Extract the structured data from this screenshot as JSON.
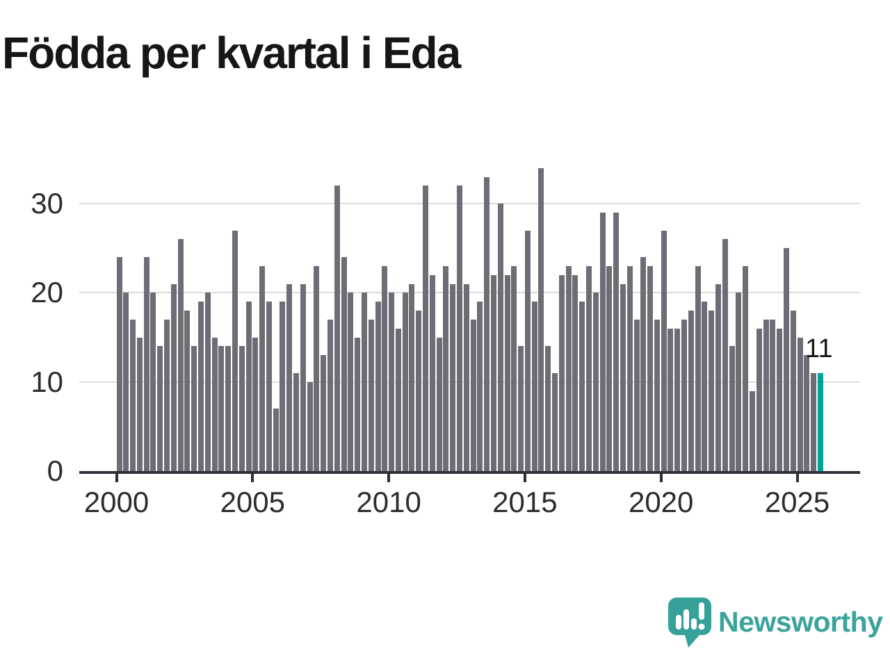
{
  "title": "Födda per kvartal i Eda",
  "logo": {
    "text": "Newsworthy"
  },
  "colors": {
    "bar": "#6d6d76",
    "highlight": "#00a29c",
    "grid": "#dcdcdc",
    "axis": "#2e2e37",
    "title_text": "#161616",
    "tick_label": "#2c2c2c",
    "logo_teal": "#3aa39b"
  },
  "chart_data": {
    "type": "bar",
    "title": "Födda per kvartal i Eda",
    "frequency": "quarterly",
    "start_period": "2000 Q1",
    "end_period": "2025 Q4",
    "values": [
      24,
      20,
      17,
      15,
      24,
      20,
      14,
      17,
      21,
      26,
      18,
      14,
      19,
      20,
      15,
      14,
      14,
      27,
      14,
      19,
      15,
      23,
      19,
      7,
      19,
      21,
      11,
      21,
      10,
      23,
      13,
      17,
      32,
      24,
      20,
      15,
      20,
      17,
      19,
      23,
      20,
      16,
      20,
      21,
      18,
      32,
      22,
      15,
      23,
      21,
      32,
      21,
      17,
      19,
      33,
      22,
      30,
      22,
      23,
      14,
      27,
      19,
      34,
      14,
      11,
      22,
      23,
      22,
      19,
      23,
      20,
      29,
      23,
      29,
      21,
      23,
      17,
      24,
      23,
      17,
      27,
      16,
      16,
      17,
      18,
      23,
      19,
      18,
      21,
      26,
      14,
      20,
      23,
      9,
      16,
      17,
      17,
      16,
      25,
      18,
      15,
      13,
      11,
      11
    ],
    "x_tick_labels": [
      "2000",
      "2005",
      "2010",
      "2015",
      "2020",
      "2025"
    ],
    "y_ticks": [
      0,
      10,
      20,
      30
    ],
    "ylim": [
      0,
      34
    ],
    "grid": true,
    "highlight": {
      "index": 103,
      "label": "11",
      "color": "#00a29c"
    }
  }
}
